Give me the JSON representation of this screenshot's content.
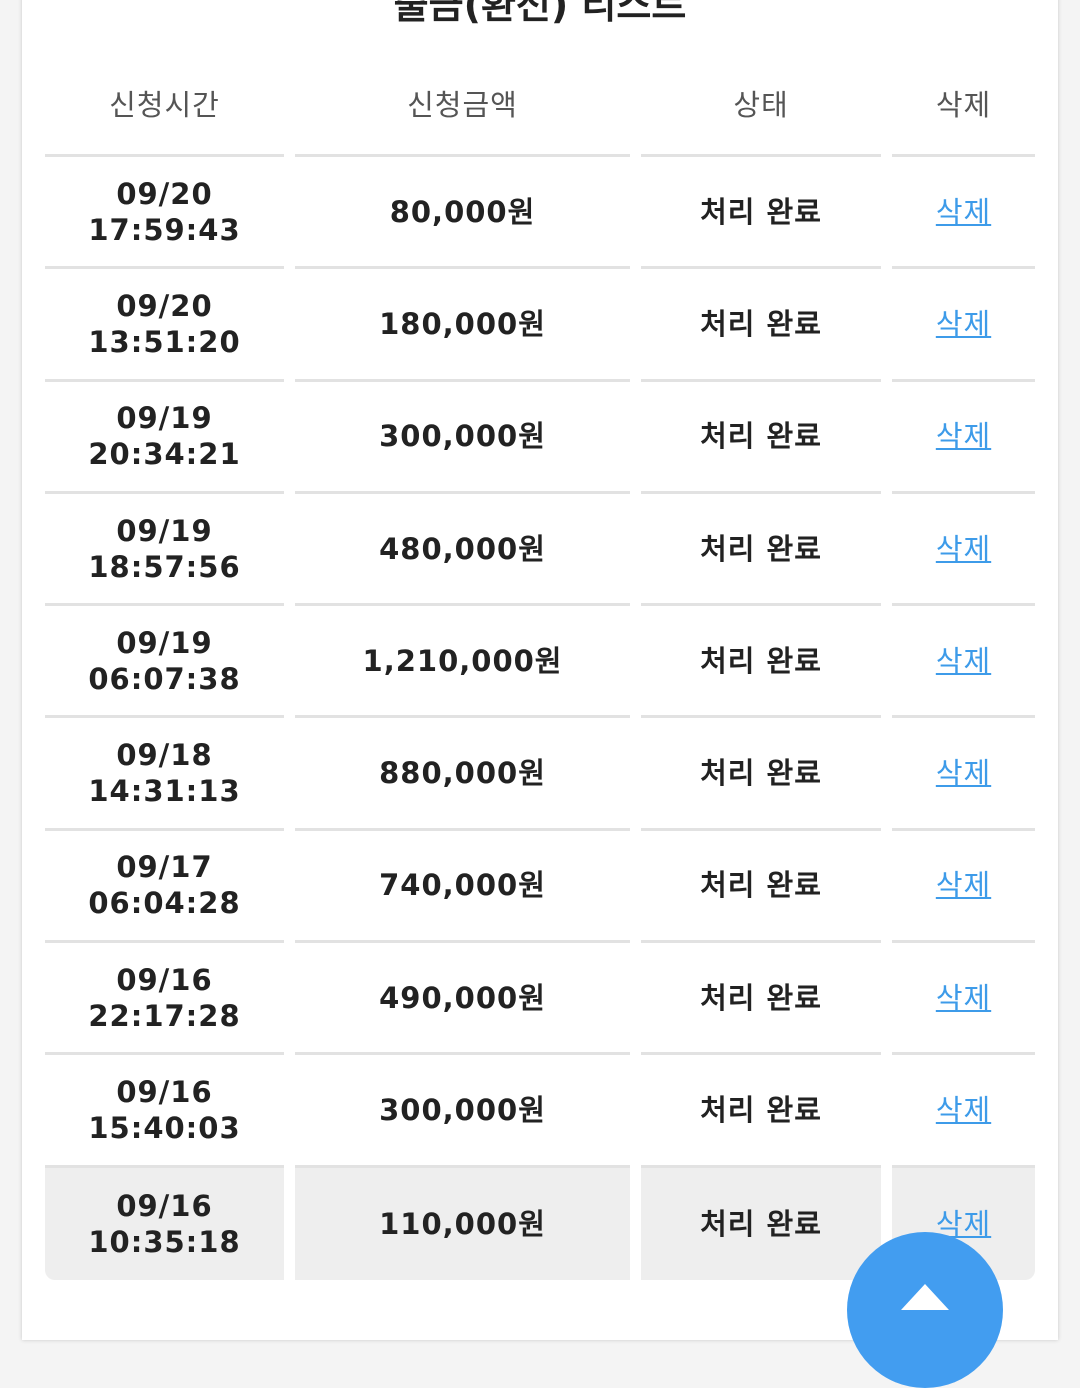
{
  "title": "출금(환전) 리스트",
  "columns": [
    "신청시간",
    "신청금액",
    "상태",
    "삭제"
  ],
  "rows": [
    {
      "date": "09/20",
      "time": "17:59:43",
      "amount": "80,000원",
      "status": "처리 완료",
      "action": "삭제"
    },
    {
      "date": "09/20",
      "time": "13:51:20",
      "amount": "180,000원",
      "status": "처리 완료",
      "action": "삭제"
    },
    {
      "date": "09/19",
      "time": "20:34:21",
      "amount": "300,000원",
      "status": "처리 완료",
      "action": "삭제"
    },
    {
      "date": "09/19",
      "time": "18:57:56",
      "amount": "480,000원",
      "status": "처리 완료",
      "action": "삭제"
    },
    {
      "date": "09/19",
      "time": "06:07:38",
      "amount": "1,210,000원",
      "status": "처리 완료",
      "action": "삭제"
    },
    {
      "date": "09/18",
      "time": "14:31:13",
      "amount": "880,000원",
      "status": "처리 완료",
      "action": "삭제"
    },
    {
      "date": "09/17",
      "time": "06:04:28",
      "amount": "740,000원",
      "status": "처리 완료",
      "action": "삭제"
    },
    {
      "date": "09/16",
      "time": "22:17:28",
      "amount": "490,000원",
      "status": "처리 완료",
      "action": "삭제"
    },
    {
      "date": "09/16",
      "time": "15:40:03",
      "amount": "300,000원",
      "status": "처리 완료",
      "action": "삭제"
    },
    {
      "date": "09/16",
      "time": "10:35:18",
      "amount": "110,000원",
      "status": "처리 완료",
      "action": "삭제"
    }
  ],
  "colors": {
    "link": "#3d9be9",
    "scroll_top_button": "#429df0",
    "highlight_row": "#eeeeee"
  },
  "icons": {
    "scroll_top": "chevron-up-icon"
  }
}
